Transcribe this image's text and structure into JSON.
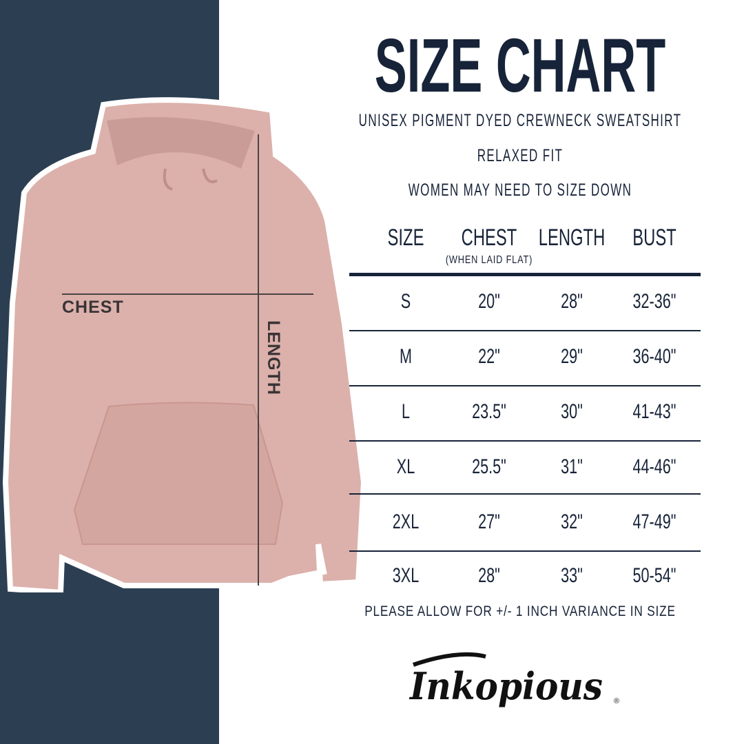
{
  "title": "SIZE CHART",
  "subtitle_lines": [
    "UNISEX PIGMENT DYED CREWNECK SWEATSHIRT",
    "RELAXED FIT",
    "WOMEN MAY NEED TO SIZE DOWN"
  ],
  "image_labels": {
    "chest": "CHEST",
    "length": "LENGTH"
  },
  "table": {
    "headers": [
      "SIZE",
      "CHEST",
      "LENGTH",
      "BUST"
    ],
    "chest_note": "(WHEN LAID FLAT)",
    "rows": [
      [
        "S",
        "20\"",
        "28\"",
        "32-36\""
      ],
      [
        "M",
        "22\"",
        "29\"",
        "36-40\""
      ],
      [
        "L",
        "23.5\"",
        "30\"",
        "41-43\""
      ],
      [
        "XL",
        "25.5\"",
        "31\"",
        "44-46\""
      ],
      [
        "2XL",
        "27\"",
        "32\"",
        "47-49\""
      ],
      [
        "3XL",
        "28\"",
        "33\"",
        "50-54\""
      ]
    ]
  },
  "footer_note": "PLEASE ALLOW FOR +/- 1 INCH VARIANCE IN SIZE",
  "brand_logo": "Inkopious",
  "colors": {
    "panel": "#2c3f52",
    "text": "#172338",
    "hoodie": "#dcb1ab"
  }
}
